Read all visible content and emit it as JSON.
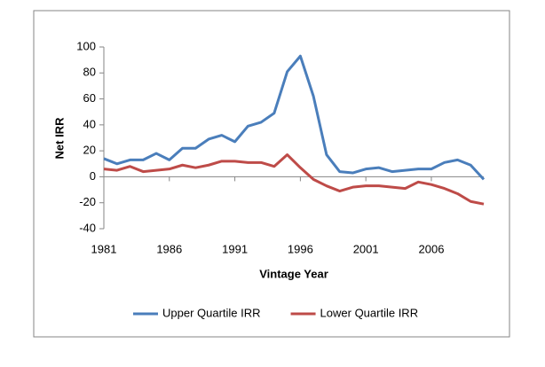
{
  "chart_data": {
    "type": "line",
    "x_label": "Vintage Year",
    "y_label": "Net IRR",
    "x": [
      1981,
      1982,
      1983,
      1984,
      1985,
      1986,
      1987,
      1988,
      1989,
      1990,
      1991,
      1992,
      1993,
      1994,
      1995,
      1996,
      1997,
      1998,
      1999,
      2000,
      2001,
      2002,
      2003,
      2004,
      2005,
      2006,
      2007,
      2008,
      2009,
      2010
    ],
    "series": [
      {
        "name": "Upper Quartile IRR",
        "color": "#4a7ebb",
        "values": [
          14,
          10,
          13,
          13,
          18,
          13,
          22,
          22,
          29,
          32,
          27,
          39,
          42,
          49,
          81,
          93,
          62,
          17,
          4,
          3,
          6,
          7,
          4,
          5,
          6,
          6,
          11,
          13,
          9,
          -2
        ]
      },
      {
        "name": "Lower Quartile IRR",
        "color": "#be4b48",
        "values": [
          6,
          5,
          8,
          4,
          5,
          6,
          9,
          7,
          9,
          12,
          12,
          11,
          11,
          8,
          17,
          7,
          -2,
          -7,
          -11,
          -8,
          -7,
          -7,
          -8,
          -9,
          -4,
          -6,
          -9,
          -13,
          -19,
          -21
        ]
      }
    ],
    "xlim": [
      1981,
      2010
    ],
    "xticks": [
      1981,
      1986,
      1991,
      1996,
      2001,
      2006
    ],
    "ylim": [
      -40,
      100
    ],
    "yticks": [
      -40,
      -20,
      0,
      20,
      40,
      60,
      80,
      100
    ],
    "grid": false,
    "legend": "bottom"
  }
}
